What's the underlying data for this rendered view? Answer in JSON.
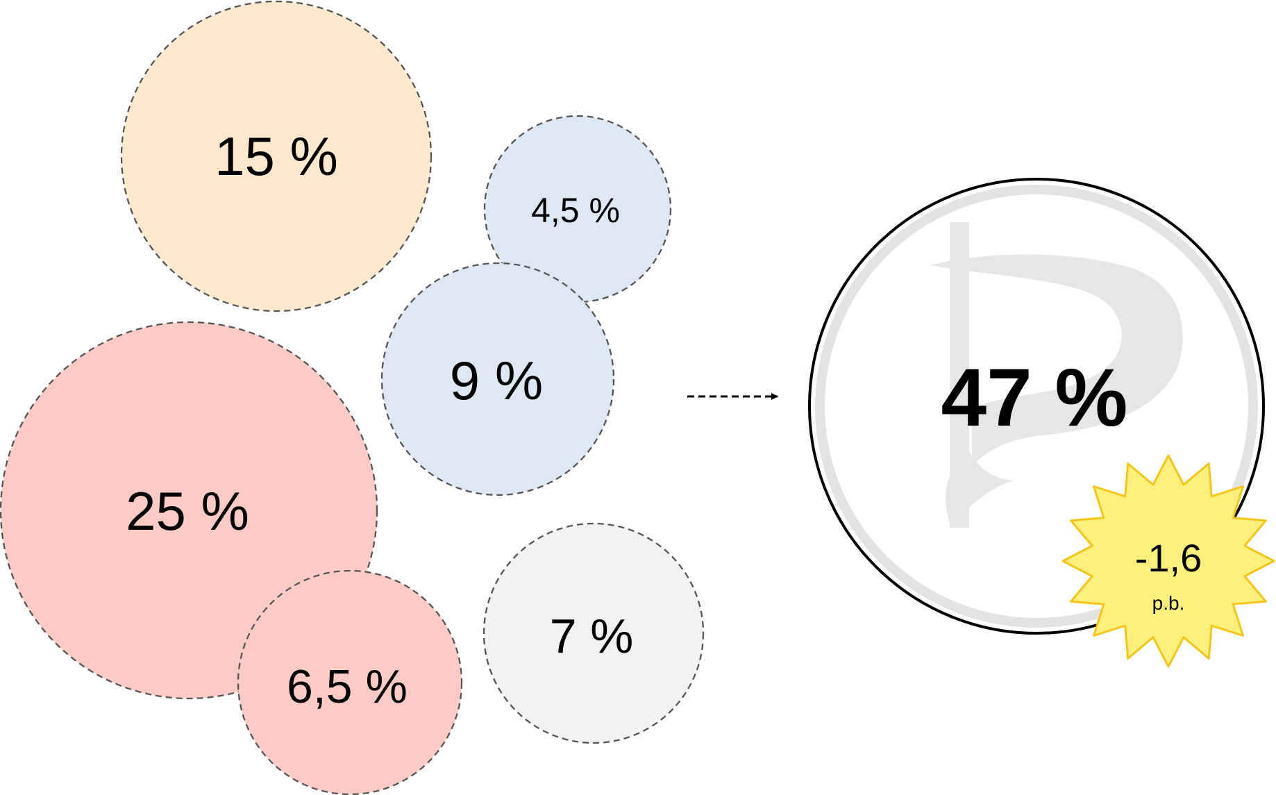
{
  "colors": {
    "orange": "#fde9cd",
    "blue": "#dde8f4",
    "red": "#fccbc5",
    "grey": "#f2f2f2",
    "result_fill": "#ffffff",
    "result_ring": "#e3e3e3",
    "result_border": "#000000",
    "logo": "#e6e6e6",
    "burst_fill": "#fcf07d",
    "burst_stroke": "#f5c518",
    "dashed_stroke": "#555555"
  },
  "bubbles": [
    {
      "id": "orange",
      "label": "15 %",
      "color": "orange"
    },
    {
      "id": "blue-small",
      "label": "4,5 %",
      "color": "blue"
    },
    {
      "id": "blue-medium",
      "label": "9 %",
      "color": "blue"
    },
    {
      "id": "red-large",
      "label": "25 %",
      "color": "red"
    },
    {
      "id": "red-small",
      "label": "6,5 %",
      "color": "red"
    },
    {
      "id": "grey",
      "label": "7 %",
      "color": "grey"
    }
  ],
  "result": {
    "label": "47 %",
    "logo_icon": "pirate-party-flag-icon"
  },
  "badge": {
    "value": "-1,6",
    "unit": "p.b.",
    "shape": "starburst"
  },
  "arrow_icon": "dashed-arrow-right-icon"
}
